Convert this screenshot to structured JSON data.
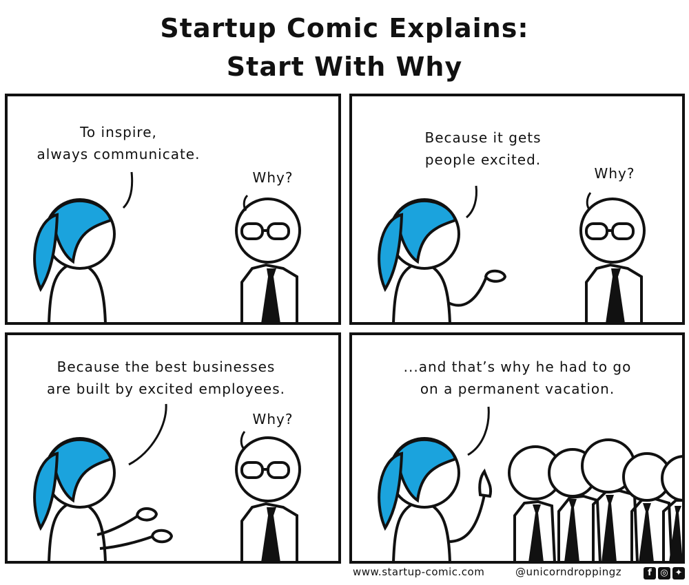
{
  "title": {
    "line1": "Startup Comic Explains:",
    "line2": "Start With Why"
  },
  "panels": [
    {
      "speaker": "To inspire,\nalways communicate.",
      "reply": "Why?"
    },
    {
      "speaker": "Because it gets\npeople excited.",
      "reply": "Why?"
    },
    {
      "speaker": "Because the best businesses\nare built by excited employees.",
      "reply": "Why?"
    },
    {
      "speaker": "...and that’s why he had to go\non a permanent vacation."
    }
  ],
  "footer": {
    "website": "www.startup-comic.com",
    "handle": "@unicorndroppingz"
  },
  "social_icons": [
    "facebook-icon",
    "instagram-icon",
    "twitter-icon"
  ],
  "colors": {
    "hair": "#1ba3dd",
    "ink": "#111111",
    "background": "#ffffff"
  }
}
